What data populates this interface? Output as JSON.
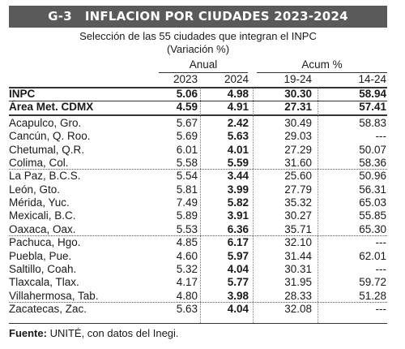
{
  "header": {
    "code": "G-3",
    "title": "INFLACION POR CIUDADES 2023-2024",
    "subtitle": "Selección de las 55 ciudades que integran el INPC",
    "unit": "(Variación %)"
  },
  "chart_data": {
    "type": "table",
    "column_groups": [
      {
        "label": "Anual",
        "columns": [
          "2023",
          "2024"
        ]
      },
      {
        "label": "Acum %",
        "columns": [
          "19-24",
          "14-24"
        ]
      }
    ],
    "columns": [
      "2023",
      "2024",
      "19-24",
      "14-24"
    ],
    "rows": [
      {
        "name": "INPC",
        "values": [
          "5.06",
          "4.98",
          "30.30",
          "58.94"
        ],
        "bold": [
          true,
          true,
          true,
          true
        ]
      },
      {
        "name": "Área Met. CDMX",
        "values": [
          "4.59",
          "4.91",
          "27.31",
          "57.41"
        ],
        "bold": [
          true,
          true,
          true,
          true
        ]
      },
      {
        "name": "Acapulco, Gro.",
        "values": [
          "5.67",
          "2.42",
          "30.49",
          "58.83"
        ],
        "bold": [
          false,
          true,
          false,
          false
        ]
      },
      {
        "name": "Cancún, Q. Roo.",
        "values": [
          "5.69",
          "5.63",
          "29.03",
          "---"
        ],
        "bold": [
          false,
          true,
          false,
          false
        ]
      },
      {
        "name": "Chetumal, Q.R.",
        "values": [
          "6.01",
          "4.01",
          "27.29",
          "50.07"
        ],
        "bold": [
          false,
          true,
          false,
          false
        ]
      },
      {
        "name": "Colima, Col.",
        "values": [
          "5.58",
          "5.59",
          "31.60",
          "58.36"
        ],
        "bold": [
          false,
          true,
          false,
          false
        ]
      },
      {
        "name": "La Paz, B.C.S.",
        "values": [
          "5.54",
          "3.44",
          "25.60",
          "50.96"
        ],
        "bold": [
          false,
          true,
          false,
          false
        ]
      },
      {
        "name": "León, Gto.",
        "values": [
          "5.81",
          "3.99",
          "27.79",
          "56.31"
        ],
        "bold": [
          false,
          true,
          false,
          false
        ]
      },
      {
        "name": "Mérida, Yuc.",
        "values": [
          "7.49",
          "5.82",
          "35.32",
          "65.03"
        ],
        "bold": [
          false,
          true,
          false,
          false
        ]
      },
      {
        "name": "Mexicali, B.C.",
        "values": [
          "5.89",
          "3.91",
          "30.27",
          "55.85"
        ],
        "bold": [
          false,
          true,
          false,
          false
        ]
      },
      {
        "name": "Oaxaca, Oax.",
        "values": [
          "5.53",
          "6.36",
          "35.71",
          "65.30"
        ],
        "bold": [
          false,
          true,
          false,
          false
        ]
      },
      {
        "name": "Pachuca, Hgo.",
        "values": [
          "4.85",
          "6.17",
          "32.10",
          "---"
        ],
        "bold": [
          false,
          true,
          false,
          false
        ]
      },
      {
        "name": "Puebla, Pue.",
        "values": [
          "4.60",
          "5.97",
          "31.44",
          "62.01"
        ],
        "bold": [
          false,
          true,
          false,
          false
        ]
      },
      {
        "name": "Saltillo, Coah.",
        "values": [
          "5.32",
          "4.04",
          "30.31",
          "---"
        ],
        "bold": [
          false,
          true,
          false,
          false
        ]
      },
      {
        "name": "Tlaxcala, Tlax.",
        "values": [
          "4.17",
          "5.77",
          "31.95",
          "59.72"
        ],
        "bold": [
          false,
          true,
          false,
          false
        ]
      },
      {
        "name": "Villahermosa, Tab.",
        "values": [
          "4.80",
          "3.98",
          "28.33",
          "51.28"
        ],
        "bold": [
          false,
          true,
          false,
          false
        ]
      },
      {
        "name": "Zacatecas, Zac.",
        "values": [
          "5.63",
          "4.04",
          "32.08",
          "---"
        ],
        "bold": [
          false,
          true,
          false,
          false
        ]
      }
    ]
  },
  "footer": {
    "source_label": "Fuente:",
    "source_text": " UNITÉ, con datos del Inegi."
  },
  "colors": {
    "title_bar": "#5a5a5a",
    "title_text": "#ffffff",
    "text": "#1a1a1a"
  }
}
